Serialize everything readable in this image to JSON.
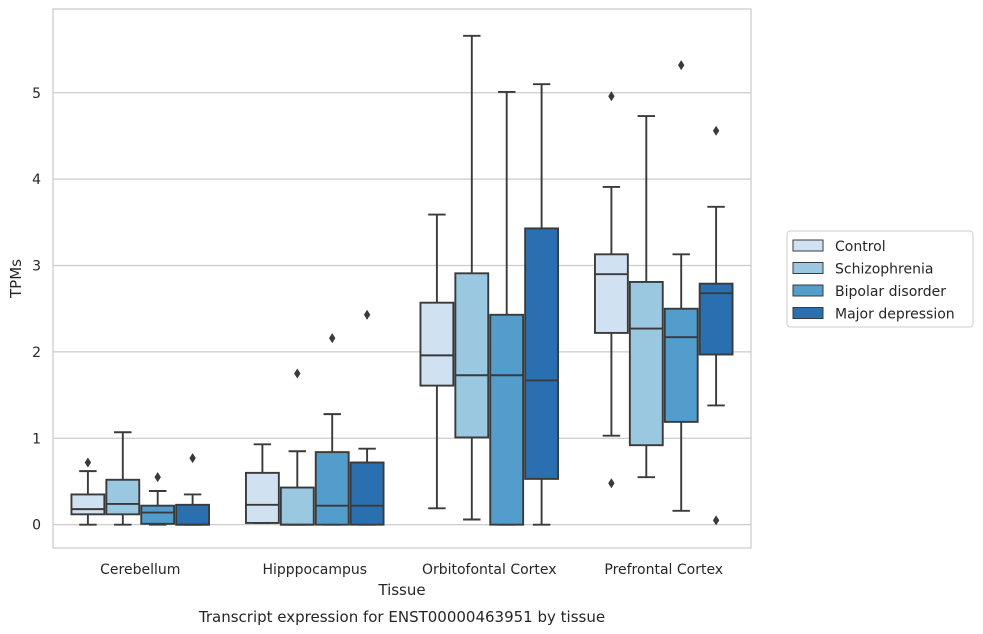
{
  "chart_data": {
    "type": "boxplot",
    "title": "",
    "caption": "Transcript expression for ENST00000463951 by tissue",
    "xlabel": "Tissue",
    "ylabel": "TPMs",
    "ylim": [
      -0.27,
      5.97
    ],
    "yticks": [
      0,
      1,
      2,
      3,
      4,
      5
    ],
    "ytick_labels": [
      "0",
      "1",
      "2",
      "3",
      "4",
      "5"
    ],
    "grid": "horizontal",
    "legend_position": "right",
    "categories": [
      "Cerebellum",
      "Hipppocampus",
      "Orbitofontal Cortex",
      "Prefrontal Cortex"
    ],
    "series": [
      {
        "name": "Control",
        "color": "#d0e1f2",
        "boxes": [
          {
            "whislo": 0.0,
            "q1": 0.12,
            "med": 0.18,
            "q3": 0.35,
            "whishi": 0.62,
            "fliers": [
              0.72
            ]
          },
          {
            "whislo": 0.02,
            "q1": 0.02,
            "med": 0.23,
            "q3": 0.6,
            "whishi": 0.93,
            "fliers": []
          },
          {
            "whislo": 0.19,
            "q1": 1.61,
            "med": 1.96,
            "q3": 2.57,
            "whislo_note": "",
            "whishi": 3.59,
            "fliers": []
          },
          {
            "whislo": 1.03,
            "q1": 2.22,
            "med": 2.9,
            "q3": 3.13,
            "whishi": 3.91,
            "fliers": [
              4.96,
              0.48
            ]
          }
        ]
      },
      {
        "name": "Schizophrenia",
        "color": "#9ac8e0",
        "boxes": [
          {
            "whislo": 0.0,
            "q1": 0.12,
            "med": 0.24,
            "q3": 0.52,
            "whishi": 1.07,
            "fliers": []
          },
          {
            "whislo": 0.0,
            "q1": 0.0,
            "med": 0.0,
            "q3": 0.43,
            "whishi": 0.85,
            "fliers": [
              1.75
            ]
          },
          {
            "whislo": 0.06,
            "q1": 1.01,
            "med": 1.73,
            "q3": 2.91,
            "whishi": 5.66,
            "fliers": []
          },
          {
            "whislo": 0.55,
            "q1": 0.92,
            "med": 2.27,
            "q3": 2.81,
            "whishi": 4.73,
            "fliers": []
          }
        ]
      },
      {
        "name": "Bipolar disorder",
        "color": "#529dcc",
        "boxes": [
          {
            "whislo": 0.0,
            "q1": 0.01,
            "med": 0.14,
            "q3": 0.22,
            "whishi": 0.39,
            "fliers": [
              0.55
            ]
          },
          {
            "whislo": 0.0,
            "q1": 0.0,
            "med": 0.22,
            "q3": 0.84,
            "whishi": 1.28,
            "fliers": [
              2.16
            ]
          },
          {
            "whislo": 0.0,
            "q1": 0.0,
            "med": 1.73,
            "q3": 2.43,
            "whishi": 5.01,
            "fliers": []
          },
          {
            "whislo": 0.16,
            "q1": 1.19,
            "med": 2.17,
            "q3": 2.5,
            "whishi": 3.13,
            "fliers": [
              5.32
            ]
          }
        ]
      },
      {
        "name": "Major depression",
        "color": "#2a70b0",
        "boxes": [
          {
            "whislo": 0.0,
            "q1": 0.0,
            "med": 0.0,
            "q3": 0.23,
            "whishi": 0.35,
            "fliers": [
              0.77
            ]
          },
          {
            "whislo": 0.0,
            "q1": 0.0,
            "med": 0.22,
            "q3": 0.72,
            "whishi": 0.88,
            "fliers": [
              2.43
            ]
          },
          {
            "whislo": 0.0,
            "q1": 0.53,
            "med": 1.67,
            "q3": 3.43,
            "whishi": 5.1,
            "fliers": []
          },
          {
            "whislo": 1.38,
            "q1": 1.97,
            "med": 2.68,
            "q3": 2.79,
            "whishi": 3.68,
            "fliers": [
              4.56,
              0.05
            ]
          }
        ]
      }
    ]
  }
}
